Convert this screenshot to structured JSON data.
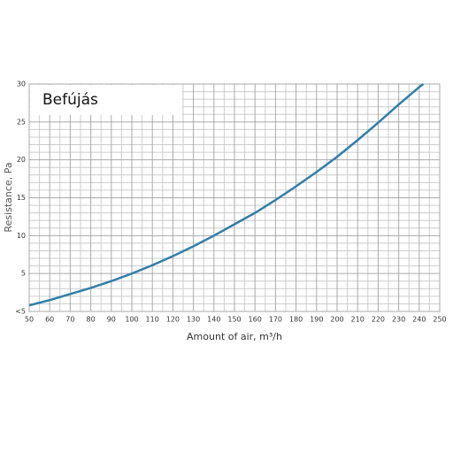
{
  "chart_data": {
    "type": "line",
    "title": "Befújás",
    "x_label": "Amount of air, m³/h",
    "y_label": "Resistance, Pa",
    "x": [
      50,
      60,
      70,
      80,
      90,
      100,
      110,
      120,
      130,
      140,
      150,
      160,
      170,
      180,
      190,
      200,
      210,
      220,
      230,
      240,
      242
    ],
    "series": [
      {
        "name": "Befújás",
        "color": "#2f7fab",
        "values": [
          0.8,
          1.5,
          2.3,
          3.1,
          4.0,
          5.0,
          6.1,
          7.3,
          8.6,
          10.0,
          11.5,
          13.0,
          14.7,
          16.5,
          18.4,
          20.4,
          22.6,
          24.9,
          27.3,
          29.6,
          30
        ]
      }
    ],
    "xlim": [
      50,
      250
    ],
    "xticks": [
      50,
      60,
      70,
      80,
      90,
      100,
      110,
      120,
      130,
      140,
      150,
      160,
      170,
      180,
      190,
      200,
      210,
      220,
      230,
      240,
      250
    ],
    "ylim": [
      0,
      30
    ],
    "yticks": [
      {
        "value": 0,
        "label": "<5"
      },
      5,
      10,
      15,
      20,
      25,
      30
    ],
    "grid": true
  }
}
